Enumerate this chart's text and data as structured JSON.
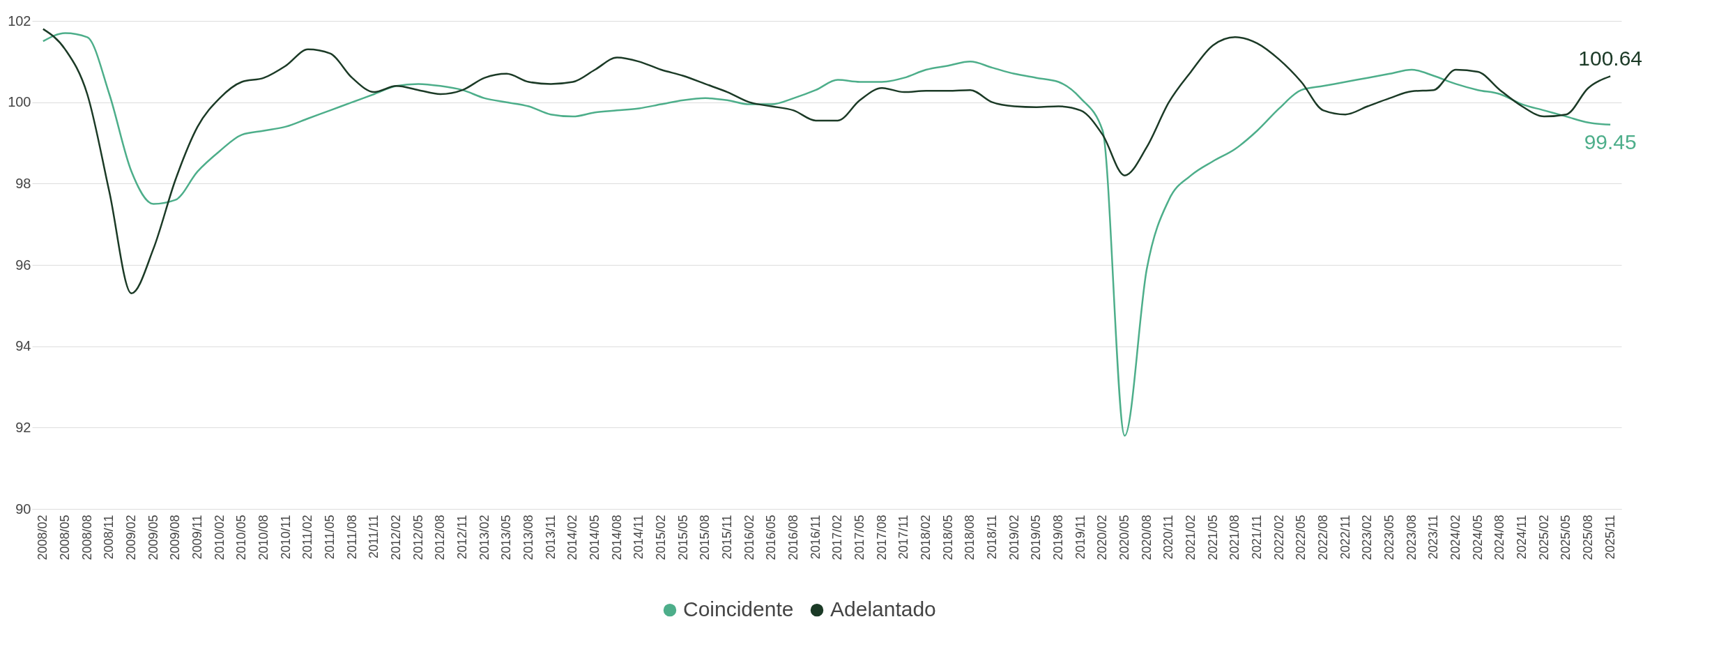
{
  "chart_data": {
    "type": "line",
    "categories": [
      "2008/02",
      "2008/05",
      "2008/08",
      "2008/11",
      "2009/02",
      "2009/05",
      "2009/08",
      "2009/11",
      "2010/02",
      "2010/05",
      "2010/08",
      "2010/11",
      "2011/02",
      "2011/05",
      "2011/08",
      "2011/11",
      "2012/02",
      "2012/05",
      "2012/08",
      "2012/11",
      "2013/02",
      "2013/05",
      "2013/08",
      "2013/11",
      "2014/02",
      "2014/05",
      "2014/08",
      "2014/11",
      "2015/02",
      "2015/05",
      "2015/08",
      "2015/11",
      "2016/02",
      "2016/05",
      "2016/08",
      "2016/11",
      "2017/02",
      "2017/05",
      "2017/08",
      "2017/11",
      "2018/02",
      "2018/05",
      "2018/08",
      "2018/11",
      "2019/02",
      "2019/05",
      "2019/08",
      "2019/11",
      "2020/02",
      "2020/05",
      "2020/08",
      "2020/11",
      "2021/02",
      "2021/05",
      "2021/08",
      "2021/11",
      "2022/02",
      "2022/05",
      "2022/08",
      "2022/11",
      "2023/02",
      "2023/05",
      "2023/08",
      "2023/11",
      "2024/02",
      "2024/05",
      "2024/08",
      "2024/11",
      "2025/02",
      "2025/05",
      "2025/08",
      "2025/11"
    ],
    "series": [
      {
        "name": "Coincidente",
        "color": "#4dae8a",
        "values": [
          101.5,
          101.7,
          101.6,
          100.2,
          98.3,
          97.5,
          97.6,
          98.3,
          98.8,
          99.2,
          99.3,
          99.4,
          99.6,
          99.8,
          100.0,
          100.2,
          100.4,
          100.45,
          100.4,
          100.3,
          100.1,
          100.0,
          99.9,
          99.7,
          99.65,
          99.75,
          99.8,
          99.85,
          99.95,
          100.05,
          100.1,
          100.05,
          99.95,
          99.95,
          100.1,
          100.3,
          100.55,
          100.5,
          100.5,
          100.6,
          100.8,
          100.9,
          101.0,
          100.85,
          100.7,
          100.6,
          100.5,
          100.1,
          99.3,
          91.8,
          95.9,
          97.6,
          98.2,
          98.55,
          98.85,
          99.3,
          99.85,
          100.3,
          100.4,
          100.5,
          100.6,
          100.7,
          100.8,
          100.65,
          100.45,
          100.3,
          100.2,
          99.95,
          99.8,
          99.65,
          99.5,
          99.45
        ]
      },
      {
        "name": "Adelantado",
        "color": "#1b3a26",
        "values": [
          101.8,
          101.3,
          100.2,
          97.8,
          95.3,
          96.4,
          98.1,
          99.4,
          100.1,
          100.5,
          100.6,
          100.9,
          101.3,
          101.2,
          100.6,
          100.25,
          100.4,
          100.3,
          100.2,
          100.3,
          100.6,
          100.7,
          100.5,
          100.45,
          100.5,
          100.8,
          101.1,
          101.0,
          100.8,
          100.65,
          100.45,
          100.25,
          100.0,
          99.9,
          99.8,
          99.55,
          99.55,
          100.05,
          100.35,
          100.25,
          100.28,
          100.28,
          100.3,
          100.0,
          99.9,
          99.88,
          99.9,
          99.8,
          99.2,
          98.2,
          98.9,
          100.0,
          100.75,
          101.4,
          101.6,
          101.45,
          101.05,
          100.5,
          99.8,
          99.7,
          99.9,
          100.1,
          100.27,
          100.3,
          100.8,
          100.75,
          100.3,
          99.9,
          99.65,
          99.7,
          100.35,
          100.64
        ]
      }
    ],
    "ylim": [
      90,
      102
    ],
    "yticks": [
      90,
      92,
      94,
      96,
      98,
      100,
      102
    ],
    "grid": "y",
    "legend": "bottom",
    "marker": "none",
    "line_style": "solid",
    "annotations": [
      {
        "text": "100.64",
        "x": "2025/11",
        "y": 100.64
      },
      {
        "text": "99.45",
        "x": "2025/11",
        "y": 99.45
      }
    ]
  }
}
